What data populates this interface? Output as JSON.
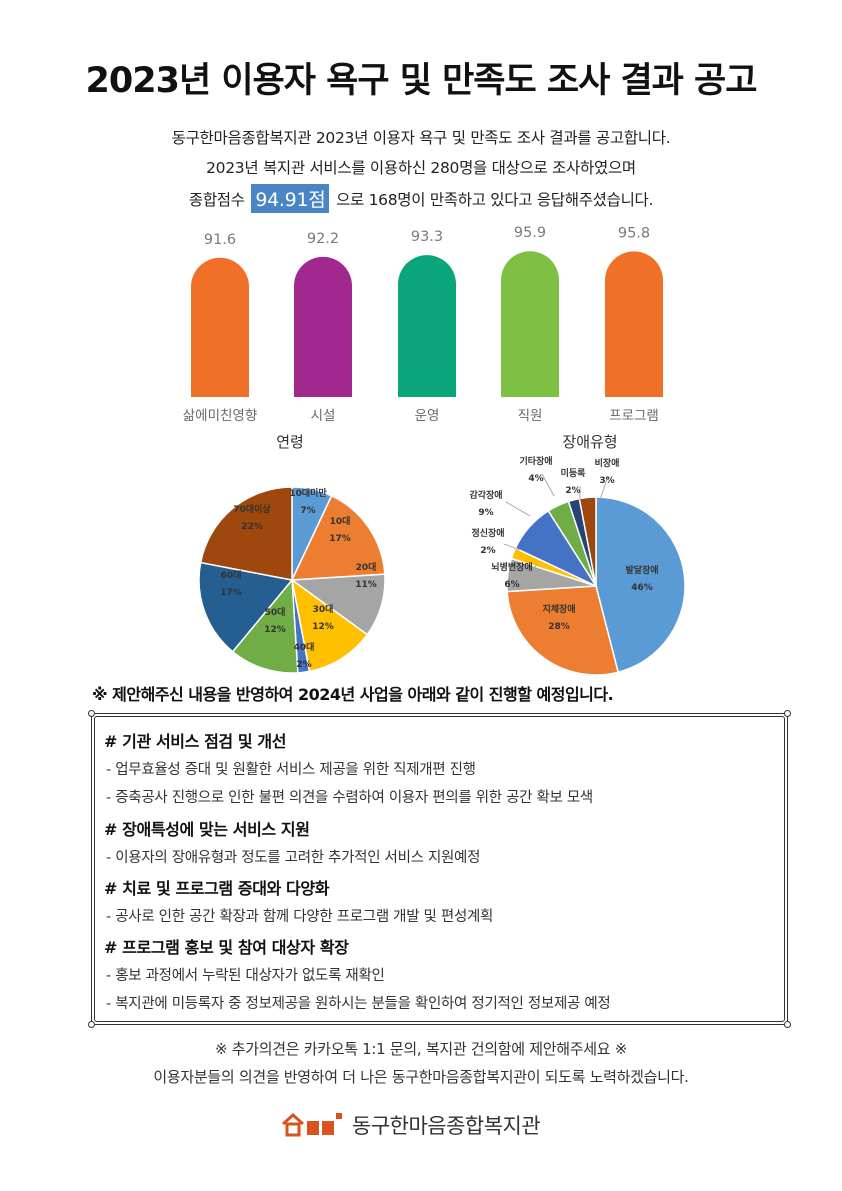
{
  "title": "2023년 이용자 욕구 및 만족도 조사 결과 공고",
  "intro": {
    "line1": "동구한마음종합복지관 2023년 이용자 욕구 및 만족도 조사 결과를 공고합니다.",
    "line2": "2023년 복지관 서비스를 이용하신 280명을 대상으로 조사하였으며",
    "line3_pre": "종합점수",
    "score": "94.91점",
    "line3_post": "으로 168명이 만족하고 있다고 응답해주셨습니다."
  },
  "chart_data": [
    {
      "type": "bar",
      "categories": [
        "삶에미친영향",
        "시설",
        "운영",
        "직원",
        "프로그램"
      ],
      "values": [
        91.6,
        92.2,
        93.3,
        95.9,
        95.8
      ],
      "colors": [
        "#f07028",
        "#a0288e",
        "#0aa57a",
        "#7dc043",
        "#f07028"
      ],
      "title": ""
    },
    {
      "type": "pie",
      "title": "연령",
      "labels": [
        "10대미만",
        "10대",
        "20대",
        "30대",
        "40대",
        "50대",
        "60대",
        "70대이상"
      ],
      "values": [
        7,
        17,
        11,
        12,
        2,
        12,
        17,
        22
      ],
      "value_labels": [
        "7%",
        "17%",
        "11%",
        "12%",
        "2%",
        "12%",
        "17%",
        "22%"
      ],
      "colors": [
        "#5b9bd5",
        "#ed7d31",
        "#a5a5a5",
        "#ffc000",
        "#4472c4",
        "#70ad47",
        "#255e91",
        "#9e480e"
      ]
    },
    {
      "type": "pie",
      "title": "장애유형",
      "labels": [
        "발달장애",
        "지체장애",
        "뇌병변장애",
        "정신장애",
        "감각장애",
        "기타장애",
        "미등록",
        "비장애"
      ],
      "values": [
        46,
        28,
        6,
        2,
        9,
        4,
        2,
        3
      ],
      "value_labels": [
        "46%",
        "28%",
        "6%",
        "2%",
        "9%",
        "4%",
        "2%",
        "3%"
      ],
      "colors": [
        "#5b9bd5",
        "#ed7d31",
        "#a5a5a5",
        "#ffc000",
        "#4472c4",
        "#70ad47",
        "#264478",
        "#9e480e"
      ]
    }
  ],
  "notice": "※ 제안해주신 내용을 반영하여 2024년 사업을 아래와 같이 진행할 예정입니다.",
  "plans": [
    {
      "heading": "# 기관 서비스 점검 및 개선",
      "items": [
        "- 업무효율성 증대 및 원활한 서비스 제공을 위한 직제개편 진행",
        "- 증축공사 진행으로 인한 불편 의견을 수렴하여 이용자 편의를 위한 공간 확보 모색"
      ]
    },
    {
      "heading": "# 장애특성에 맞는 서비스 지원",
      "items": [
        "- 이용자의 장애유형과 정도를 고려한 추가적인 서비스 지원예정"
      ]
    },
    {
      "heading": "# 치료 및 프로그램 증대와 다양화",
      "items": [
        "- 공사로 인한 공간 확장과 함께 다양한 프로그램 개발 및 편성계획"
      ]
    },
    {
      "heading": "# 프로그램 홍보 및 참여 대상자 확장",
      "items": [
        "- 홍보 과정에서 누락된 대상자가 없도록 재확인",
        "- 복지관에 미등록자 중 정보제공을 원하시는 분들을 확인하여 정기적인 정보제공 예정"
      ]
    }
  ],
  "footer": {
    "line1": "※ 추가의견은 카카오톡 1:1 문의, 복지관 건의함에 제안해주세요 ※",
    "line2": "이용자분들의 의견을 반영하여 더 나은 동구한마음종합복지관이 되도록 노력하겠습니다.",
    "org_name": "동구한마음종합복지관"
  }
}
